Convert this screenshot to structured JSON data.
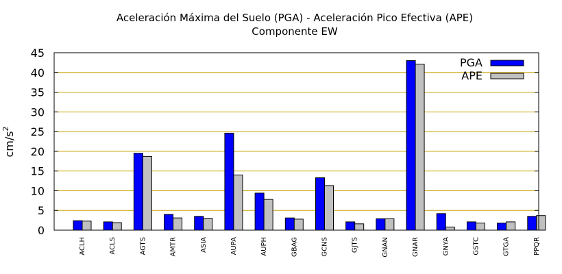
{
  "chart_data": {
    "type": "bar",
    "title": "Aceleración Máxima del Suelo (PGA) -  Aceleración Pico Efectiva (APE)",
    "subtitle": "Componente EW",
    "ylabel_base": "cm/s",
    "ylabel_exp": "2",
    "ylim": [
      0,
      45
    ],
    "yticks": [
      0,
      5,
      10,
      15,
      20,
      25,
      30,
      35,
      40,
      45
    ],
    "grid": true,
    "legend_position": "top-right",
    "categories": [
      "ACLH",
      "ACLS",
      "AGTS",
      "AMTR",
      "ASIA",
      "AUPA",
      "AUPH",
      "GBAG",
      "GCNS",
      "GJTS",
      "GNAN",
      "GNAR",
      "GNYA",
      "GSTC",
      "GTGA",
      "PPQR"
    ],
    "series": [
      {
        "name": "PGA",
        "color": "#0000ff",
        "values": [
          2.4,
          2.1,
          19.5,
          4.0,
          3.5,
          24.6,
          9.4,
          3.1,
          13.3,
          2.1,
          2.9,
          43.0,
          4.2,
          2.1,
          1.8,
          3.5
        ]
      },
      {
        "name": "APE",
        "color": "#c0c0c0",
        "values": [
          2.3,
          1.9,
          18.7,
          3.1,
          3.0,
          14.0,
          7.8,
          2.8,
          11.3,
          1.6,
          2.9,
          42.1,
          0.8,
          1.8,
          2.1,
          3.7
        ]
      }
    ]
  }
}
